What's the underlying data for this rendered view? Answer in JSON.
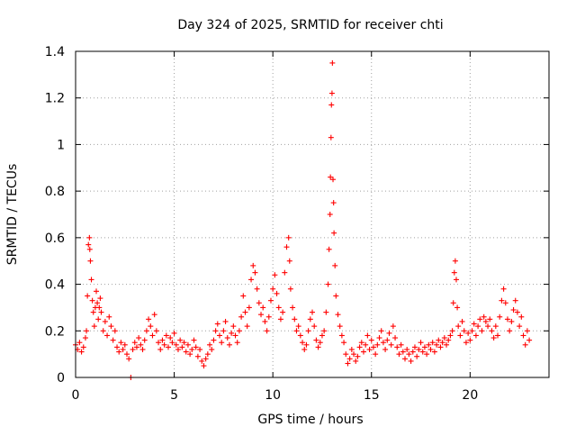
{
  "chart_data": {
    "type": "scatter",
    "title": "Day 324 of 2025, SRMTID for receiver chti",
    "xlabel": "GPS time / hours",
    "ylabel": "SRMTID / TECUs",
    "xlim": [
      0,
      24
    ],
    "ylim": [
      0,
      1.4
    ],
    "xticks": [
      0,
      5,
      10,
      15,
      20
    ],
    "xtick_labels": [
      "0",
      "5",
      "10",
      "15",
      "20"
    ],
    "yticks": [
      0,
      0.2,
      0.4,
      0.6,
      0.8,
      1.0,
      1.2,
      1.4
    ],
    "ytick_labels": [
      "0",
      "0.2",
      "0.4",
      "0.6",
      "0.8",
      "1",
      "1.2",
      "1.4"
    ],
    "grid": true,
    "marker": "plus",
    "series": [
      {
        "name": "SRMTID",
        "color": "#ff0000",
        "points": [
          [
            0.0,
            0.14
          ],
          [
            0.1,
            0.12
          ],
          [
            0.2,
            0.15
          ],
          [
            0.3,
            0.11
          ],
          [
            0.4,
            0.13
          ],
          [
            0.5,
            0.17
          ],
          [
            0.55,
            0.2
          ],
          [
            0.6,
            0.35
          ],
          [
            0.65,
            0.57
          ],
          [
            0.7,
            0.6
          ],
          [
            0.72,
            0.55
          ],
          [
            0.75,
            0.5
          ],
          [
            0.8,
            0.42
          ],
          [
            0.85,
            0.33
          ],
          [
            0.9,
            0.28
          ],
          [
            0.95,
            0.22
          ],
          [
            1.0,
            0.3
          ],
          [
            1.05,
            0.37
          ],
          [
            1.1,
            0.32
          ],
          [
            1.15,
            0.25
          ],
          [
            1.2,
            0.3
          ],
          [
            1.25,
            0.34
          ],
          [
            1.3,
            0.28
          ],
          [
            1.4,
            0.2
          ],
          [
            1.5,
            0.24
          ],
          [
            1.6,
            0.18
          ],
          [
            1.7,
            0.26
          ],
          [
            1.8,
            0.22
          ],
          [
            1.9,
            0.16
          ],
          [
            2.0,
            0.2
          ],
          [
            2.1,
            0.13
          ],
          [
            2.2,
            0.11
          ],
          [
            2.3,
            0.15
          ],
          [
            2.4,
            0.12
          ],
          [
            2.5,
            0.14
          ],
          [
            2.6,
            0.1
          ],
          [
            2.7,
            0.08
          ],
          [
            2.8,
            0.0
          ],
          [
            2.9,
            0.12
          ],
          [
            3.0,
            0.15
          ],
          [
            3.1,
            0.13
          ],
          [
            3.2,
            0.17
          ],
          [
            3.3,
            0.14
          ],
          [
            3.4,
            0.12
          ],
          [
            3.5,
            0.16
          ],
          [
            3.6,
            0.2
          ],
          [
            3.7,
            0.25
          ],
          [
            3.8,
            0.22
          ],
          [
            3.9,
            0.18
          ],
          [
            4.0,
            0.27
          ],
          [
            4.1,
            0.2
          ],
          [
            4.2,
            0.15
          ],
          [
            4.3,
            0.12
          ],
          [
            4.4,
            0.16
          ],
          [
            4.5,
            0.14
          ],
          [
            4.6,
            0.18
          ],
          [
            4.7,
            0.13
          ],
          [
            4.8,
            0.17
          ],
          [
            4.9,
            0.15
          ],
          [
            5.0,
            0.19
          ],
          [
            5.1,
            0.14
          ],
          [
            5.2,
            0.12
          ],
          [
            5.3,
            0.16
          ],
          [
            5.4,
            0.13
          ],
          [
            5.5,
            0.15
          ],
          [
            5.6,
            0.11
          ],
          [
            5.7,
            0.14
          ],
          [
            5.8,
            0.1
          ],
          [
            5.9,
            0.12
          ],
          [
            6.0,
            0.16
          ],
          [
            6.1,
            0.13
          ],
          [
            6.2,
            0.09
          ],
          [
            6.3,
            0.12
          ],
          [
            6.4,
            0.07
          ],
          [
            6.5,
            0.05
          ],
          [
            6.6,
            0.08
          ],
          [
            6.7,
            0.1
          ],
          [
            6.8,
            0.14
          ],
          [
            6.9,
            0.12
          ],
          [
            7.0,
            0.16
          ],
          [
            7.1,
            0.2
          ],
          [
            7.2,
            0.23
          ],
          [
            7.3,
            0.18
          ],
          [
            7.4,
            0.15
          ],
          [
            7.5,
            0.2
          ],
          [
            7.6,
            0.24
          ],
          [
            7.7,
            0.17
          ],
          [
            7.8,
            0.14
          ],
          [
            7.9,
            0.19
          ],
          [
            8.0,
            0.22
          ],
          [
            8.1,
            0.18
          ],
          [
            8.2,
            0.15
          ],
          [
            8.3,
            0.2
          ],
          [
            8.4,
            0.26
          ],
          [
            8.5,
            0.35
          ],
          [
            8.6,
            0.28
          ],
          [
            8.7,
            0.22
          ],
          [
            8.8,
            0.3
          ],
          [
            8.9,
            0.42
          ],
          [
            9.0,
            0.48
          ],
          [
            9.1,
            0.45
          ],
          [
            9.2,
            0.38
          ],
          [
            9.3,
            0.32
          ],
          [
            9.4,
            0.27
          ],
          [
            9.5,
            0.3
          ],
          [
            9.6,
            0.24
          ],
          [
            9.7,
            0.2
          ],
          [
            9.8,
            0.26
          ],
          [
            9.9,
            0.33
          ],
          [
            10.0,
            0.38
          ],
          [
            10.1,
            0.44
          ],
          [
            10.2,
            0.36
          ],
          [
            10.3,
            0.3
          ],
          [
            10.4,
            0.25
          ],
          [
            10.5,
            0.28
          ],
          [
            10.6,
            0.45
          ],
          [
            10.7,
            0.56
          ],
          [
            10.8,
            0.6
          ],
          [
            10.85,
            0.5
          ],
          [
            10.9,
            0.38
          ],
          [
            11.0,
            0.3
          ],
          [
            11.1,
            0.25
          ],
          [
            11.2,
            0.2
          ],
          [
            11.3,
            0.22
          ],
          [
            11.4,
            0.18
          ],
          [
            11.5,
            0.15
          ],
          [
            11.6,
            0.12
          ],
          [
            11.7,
            0.14
          ],
          [
            11.8,
            0.2
          ],
          [
            11.9,
            0.25
          ],
          [
            12.0,
            0.28
          ],
          [
            12.1,
            0.22
          ],
          [
            12.2,
            0.16
          ],
          [
            12.3,
            0.13
          ],
          [
            12.4,
            0.15
          ],
          [
            12.5,
            0.18
          ],
          [
            12.6,
            0.2
          ],
          [
            12.7,
            0.28
          ],
          [
            12.8,
            0.4
          ],
          [
            12.85,
            0.55
          ],
          [
            12.9,
            0.7
          ],
          [
            12.92,
            0.86
          ],
          [
            12.95,
            1.03
          ],
          [
            12.97,
            1.17
          ],
          [
            13.0,
            1.22
          ],
          [
            13.02,
            1.35
          ],
          [
            13.05,
            0.85
          ],
          [
            13.08,
            0.75
          ],
          [
            13.1,
            0.62
          ],
          [
            13.15,
            0.48
          ],
          [
            13.2,
            0.35
          ],
          [
            13.3,
            0.27
          ],
          [
            13.4,
            0.22
          ],
          [
            13.5,
            0.18
          ],
          [
            13.6,
            0.15
          ],
          [
            13.7,
            0.1
          ],
          [
            13.8,
            0.06
          ],
          [
            13.9,
            0.08
          ],
          [
            14.0,
            0.12
          ],
          [
            14.1,
            0.1
          ],
          [
            14.2,
            0.07
          ],
          [
            14.3,
            0.09
          ],
          [
            14.4,
            0.13
          ],
          [
            14.5,
            0.15
          ],
          [
            14.6,
            0.11
          ],
          [
            14.7,
            0.14
          ],
          [
            14.8,
            0.18
          ],
          [
            14.9,
            0.12
          ],
          [
            15.0,
            0.16
          ],
          [
            15.1,
            0.13
          ],
          [
            15.2,
            0.1
          ],
          [
            15.3,
            0.14
          ],
          [
            15.4,
            0.17
          ],
          [
            15.5,
            0.2
          ],
          [
            15.6,
            0.15
          ],
          [
            15.7,
            0.12
          ],
          [
            15.8,
            0.16
          ],
          [
            15.9,
            0.19
          ],
          [
            16.0,
            0.14
          ],
          [
            16.1,
            0.22
          ],
          [
            16.2,
            0.17
          ],
          [
            16.3,
            0.13
          ],
          [
            16.4,
            0.1
          ],
          [
            16.5,
            0.14
          ],
          [
            16.6,
            0.11
          ],
          [
            16.7,
            0.08
          ],
          [
            16.8,
            0.12
          ],
          [
            16.9,
            0.1
          ],
          [
            17.0,
            0.07
          ],
          [
            17.1,
            0.11
          ],
          [
            17.2,
            0.13
          ],
          [
            17.3,
            0.09
          ],
          [
            17.4,
            0.12
          ],
          [
            17.5,
            0.15
          ],
          [
            17.6,
            0.11
          ],
          [
            17.7,
            0.13
          ],
          [
            17.8,
            0.1
          ],
          [
            17.9,
            0.14
          ],
          [
            18.0,
            0.12
          ],
          [
            18.1,
            0.15
          ],
          [
            18.2,
            0.11
          ],
          [
            18.3,
            0.14
          ],
          [
            18.4,
            0.16
          ],
          [
            18.5,
            0.13
          ],
          [
            18.6,
            0.15
          ],
          [
            18.7,
            0.17
          ],
          [
            18.8,
            0.14
          ],
          [
            18.9,
            0.16
          ],
          [
            19.0,
            0.18
          ],
          [
            19.1,
            0.2
          ],
          [
            19.15,
            0.32
          ],
          [
            19.2,
            0.45
          ],
          [
            19.25,
            0.5
          ],
          [
            19.3,
            0.42
          ],
          [
            19.35,
            0.3
          ],
          [
            19.4,
            0.22
          ],
          [
            19.5,
            0.18
          ],
          [
            19.6,
            0.24
          ],
          [
            19.7,
            0.2
          ],
          [
            19.8,
            0.15
          ],
          [
            19.9,
            0.19
          ],
          [
            20.0,
            0.16
          ],
          [
            20.1,
            0.2
          ],
          [
            20.2,
            0.23
          ],
          [
            20.3,
            0.18
          ],
          [
            20.4,
            0.22
          ],
          [
            20.5,
            0.25
          ],
          [
            20.6,
            0.2
          ],
          [
            20.7,
            0.26
          ],
          [
            20.8,
            0.24
          ],
          [
            20.9,
            0.22
          ],
          [
            21.0,
            0.25
          ],
          [
            21.1,
            0.2
          ],
          [
            21.2,
            0.17
          ],
          [
            21.3,
            0.22
          ],
          [
            21.4,
            0.18
          ],
          [
            21.5,
            0.26
          ],
          [
            21.6,
            0.33
          ],
          [
            21.7,
            0.38
          ],
          [
            21.8,
            0.32
          ],
          [
            21.9,
            0.25
          ],
          [
            22.0,
            0.2
          ],
          [
            22.1,
            0.24
          ],
          [
            22.2,
            0.29
          ],
          [
            22.3,
            0.33
          ],
          [
            22.4,
            0.28
          ],
          [
            22.5,
            0.22
          ],
          [
            22.6,
            0.26
          ],
          [
            22.7,
            0.18
          ],
          [
            22.8,
            0.14
          ],
          [
            22.9,
            0.2
          ],
          [
            23.0,
            0.16
          ]
        ]
      }
    ]
  }
}
